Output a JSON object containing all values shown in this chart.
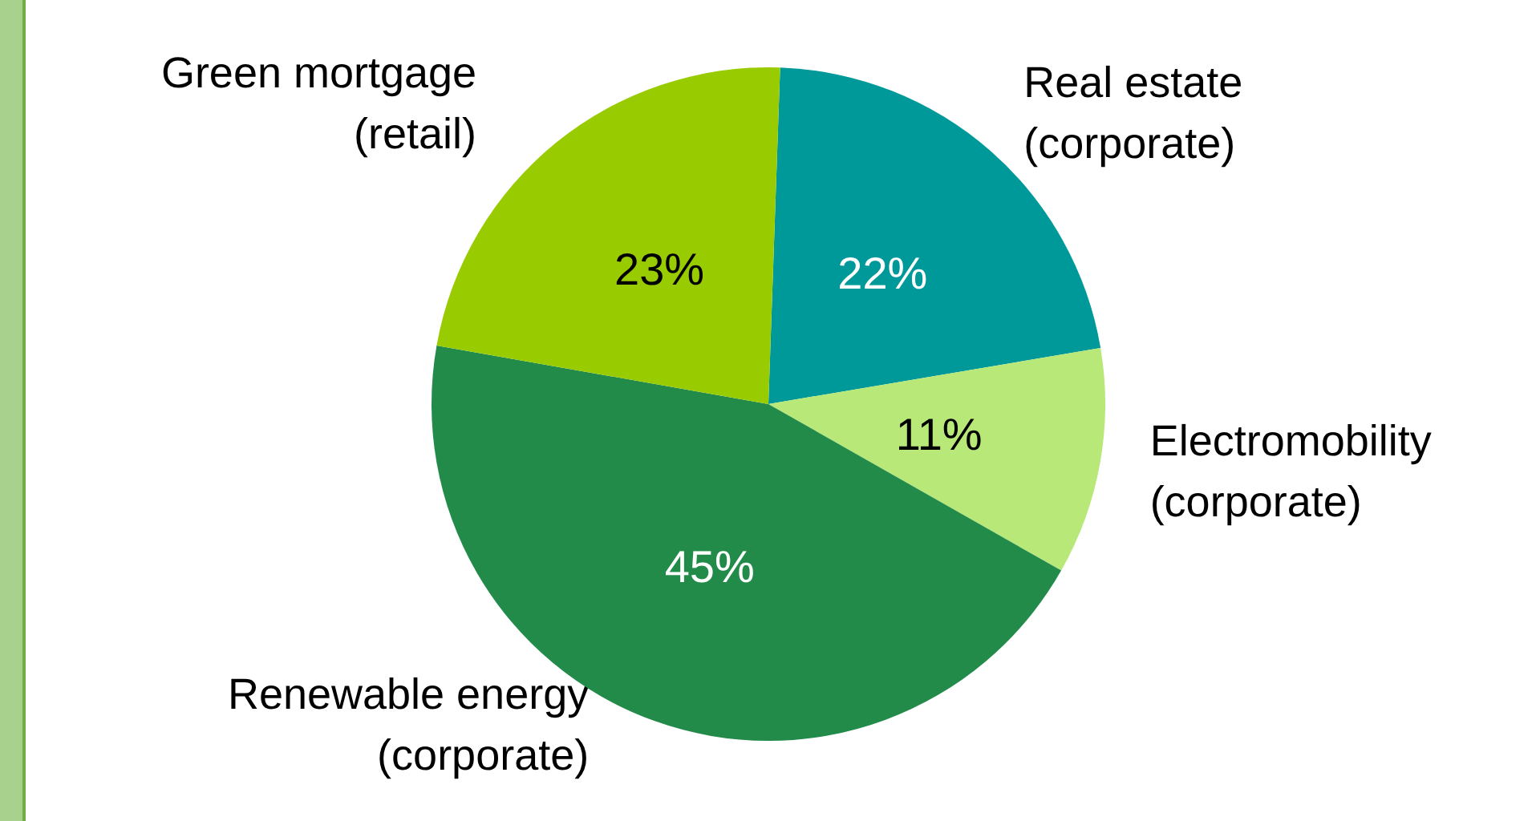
{
  "chart_data": {
    "type": "pie",
    "categories": [
      "Real estate (corporate)",
      "Electromobility (corporate)",
      "Renewable energy (corporate)",
      "Green mortgage (retail)"
    ],
    "values": [
      22,
      11,
      45,
      23
    ],
    "value_labels": [
      "22%",
      "11%",
      "45%",
      "23%"
    ],
    "colors": [
      "#009999",
      "#b8e878",
      "#228b4a",
      "#99cc00"
    ]
  }
}
